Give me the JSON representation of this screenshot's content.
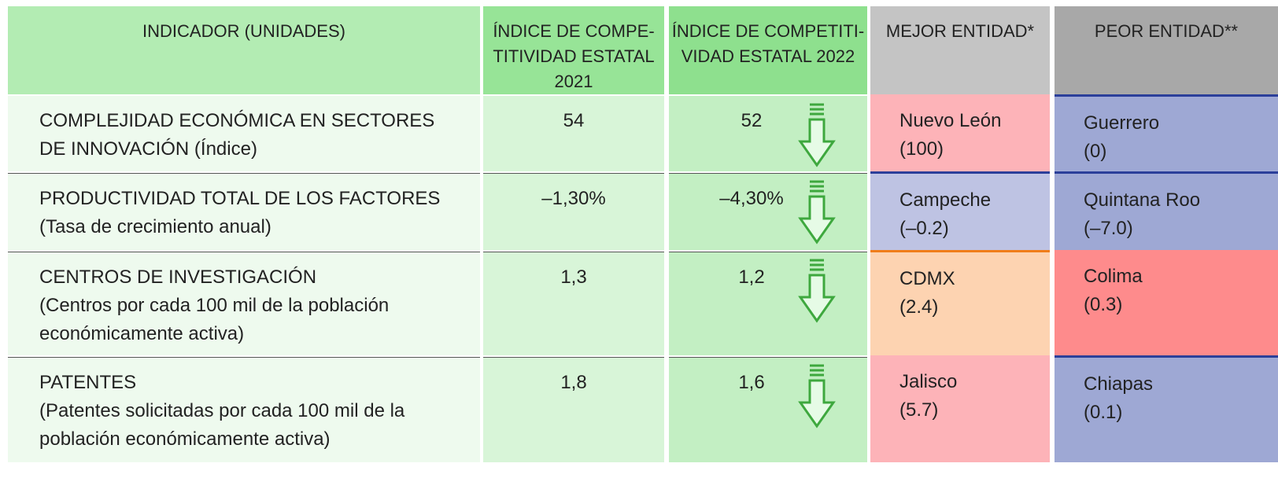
{
  "header": [
    "INDICADOR (UNIDADES)",
    [
      "ÍNDICE DE COMPE-",
      "TITIVIDAD ESTATAL",
      "2021"
    ],
    [
      "ÍNDICE DE COMPETITI-",
      "VIDAD ESTATAL 2022"
    ],
    "MEJOR ENTIDAD*",
    "PEOR ENTIDAD**"
  ],
  "rows": [
    {
      "indicator": [
        "COMPLEJIDAD ECONÓMICA EN SECTORES",
        "DE INNOVACIÓN (Índice)"
      ],
      "v2021": "54",
      "v2022": "52",
      "best": {
        "name": "Nuevo León",
        "value": "(100)",
        "color": "#fdb3b8"
      },
      "worst": {
        "name": "Guerrero",
        "value": "(0)",
        "color": "#9ea8d4"
      }
    },
    {
      "indicator": [
        "PRODUCTIVIDAD TOTAL DE LOS FACTORES",
        "(Tasa de crecimiento anual)"
      ],
      "v2021": "–1,30%",
      "v2022": "–4,30%",
      "best": {
        "name": "Campeche",
        "value": "(–0.2)",
        "color": "#bec3e3"
      },
      "worst": {
        "name": "Quintana Roo",
        "value": "(–7.0)",
        "color": "#9ea8d4"
      }
    },
    {
      "indicator": [
        "CENTROS DE INVESTIGACIÓN",
        "(Centros por cada 100 mil de la población",
        "económicamente activa)"
      ],
      "v2021": "1,3",
      "v2022": "1,2",
      "best": {
        "name": "CDMX",
        "value": "(2.4)",
        "color": "#fdd3b1"
      },
      "worst": {
        "name": "Colima",
        "value": "(0.3)",
        "color": "#fe8b8c"
      }
    },
    {
      "indicator": [
        "PATENTES",
        "(Patentes solicitadas por cada 100 mil de la",
        "población económicamente activa)"
      ],
      "v2021": "1,8",
      "v2022": "1,6",
      "best": {
        "name": "Jalisco",
        "value": "(5.7)",
        "color": "#fdb3b8"
      },
      "worst": {
        "name": "Chiapas",
        "value": "(0.1)",
        "color": "#9ea8d4"
      }
    }
  ]
}
